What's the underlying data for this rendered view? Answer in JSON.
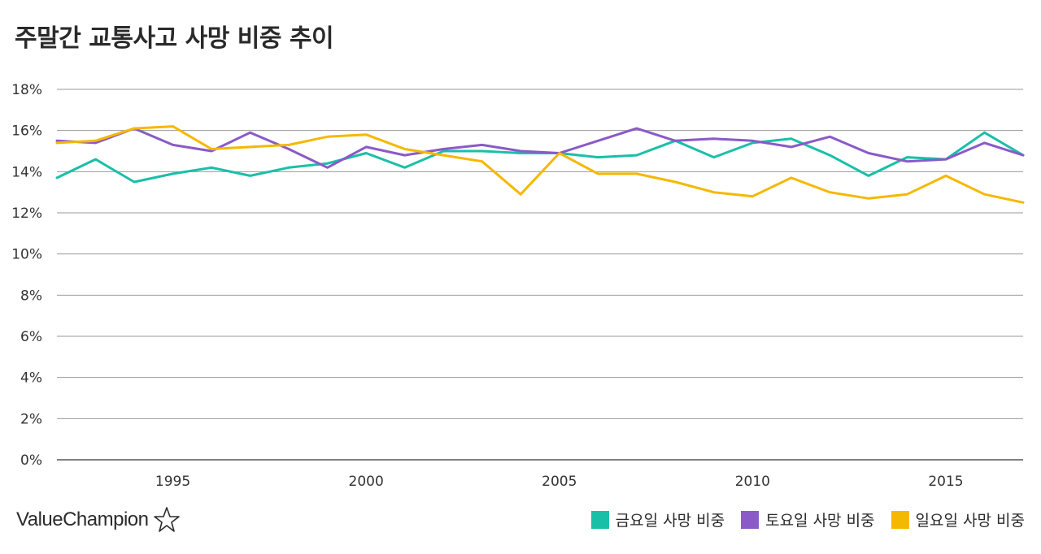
{
  "chart_data": {
    "type": "line",
    "title": "주말간 교통사고 사망 비중 추이",
    "xlabel": "",
    "ylabel": "",
    "x": [
      1992,
      1993,
      1994,
      1995,
      1996,
      1997,
      1998,
      1999,
      2000,
      2001,
      2002,
      2003,
      2004,
      2005,
      2006,
      2007,
      2008,
      2009,
      2010,
      2011,
      2012,
      2013,
      2014,
      2015,
      2016,
      2017
    ],
    "x_ticks": [
      1995,
      2000,
      2005,
      2010,
      2015
    ],
    "xlim": [
      1992,
      2017
    ],
    "ylim": [
      0,
      18
    ],
    "y_ticks": [
      0,
      2,
      4,
      6,
      8,
      10,
      12,
      14,
      16,
      18
    ],
    "y_tick_labels": [
      "0%",
      "2%",
      "4%",
      "6%",
      "8%",
      "10%",
      "12%",
      "14%",
      "16%",
      "18%"
    ],
    "grid": true,
    "legend_position": "bottom-right",
    "series": [
      {
        "name": "금요일 사망 비중",
        "color": "#1ABFA8",
        "values": [
          13.7,
          14.6,
          13.5,
          13.9,
          14.2,
          13.8,
          14.2,
          14.4,
          14.9,
          14.2,
          15.0,
          15.0,
          14.9,
          14.9,
          14.7,
          14.8,
          15.5,
          14.7,
          15.4,
          15.6,
          14.8,
          13.8,
          14.7,
          14.6,
          15.9,
          14.8
        ]
      },
      {
        "name": "토요일 사망 비중",
        "color": "#8A5AC8",
        "values": [
          15.5,
          15.4,
          16.1,
          15.3,
          15.0,
          15.9,
          15.1,
          14.2,
          15.2,
          14.8,
          15.1,
          15.3,
          15.0,
          14.9,
          15.5,
          16.1,
          15.5,
          15.6,
          15.5,
          15.2,
          15.7,
          14.9,
          14.5,
          14.6,
          15.4,
          14.8
        ]
      },
      {
        "name": "일요일 사망 비중",
        "color": "#F5B800",
        "values": [
          15.4,
          15.5,
          16.1,
          16.2,
          15.1,
          15.2,
          15.3,
          15.7,
          15.8,
          15.1,
          14.8,
          14.5,
          12.9,
          14.9,
          13.9,
          13.9,
          13.5,
          13.0,
          12.8,
          13.7,
          13.0,
          12.7,
          12.9,
          13.8,
          12.9,
          12.5
        ]
      }
    ]
  },
  "brand": {
    "name": "ValueChampion"
  }
}
